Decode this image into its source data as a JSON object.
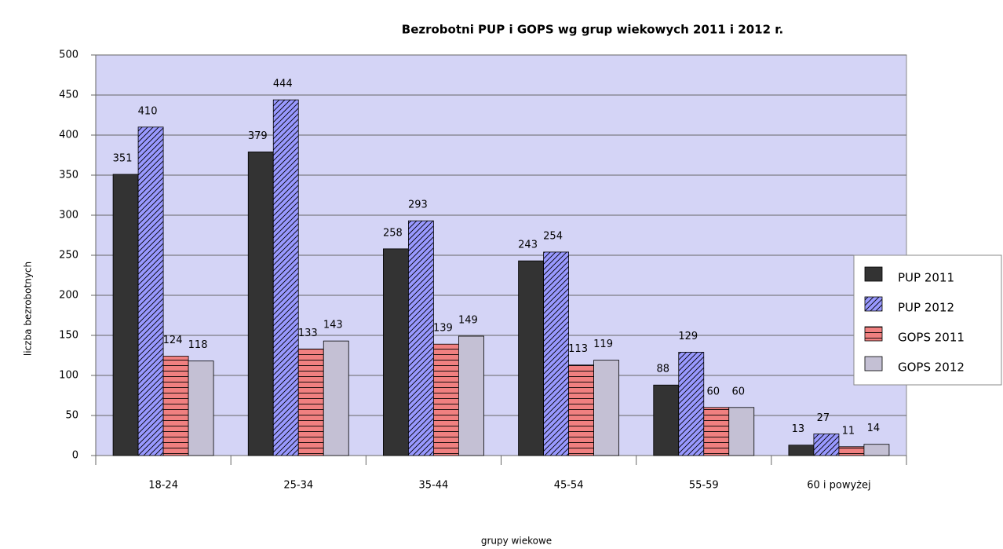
{
  "chart_data": {
    "type": "bar",
    "title": "Bezrobotni PUP i GOPS wg grup wiekowych 2011 i 2012 r.",
    "x_label": "grupy wiekowe",
    "y_label": "liczba bezrobotnych",
    "categories": [
      "18-24",
      "25-34",
      "35-44",
      "45-54",
      "55-59",
      "60 i powyżej"
    ],
    "series": [
      {
        "name": "PUP 2011",
        "color": "#333333",
        "pattern": "solid",
        "values": [
          351,
          379,
          258,
          243,
          88,
          13
        ]
      },
      {
        "name": "PUP 2012",
        "color": "#9999ff",
        "pattern": "diagonal",
        "values": [
          410,
          444,
          293,
          254,
          129,
          27
        ]
      },
      {
        "name": "GOPS 2011",
        "color": "#f08080",
        "pattern": "horizontal",
        "values": [
          124,
          133,
          139,
          113,
          60,
          11
        ]
      },
      {
        "name": "GOPS 2012",
        "color": "#c4c0d4",
        "pattern": "solid",
        "values": [
          118,
          143,
          149,
          119,
          60,
          14
        ]
      }
    ],
    "ylim": [
      0,
      500
    ],
    "yticks": [
      0,
      50,
      100,
      150,
      200,
      250,
      300,
      350,
      400,
      450,
      500
    ],
    "grid": true,
    "plot_background": "#d4d4f6",
    "legend": "right"
  }
}
